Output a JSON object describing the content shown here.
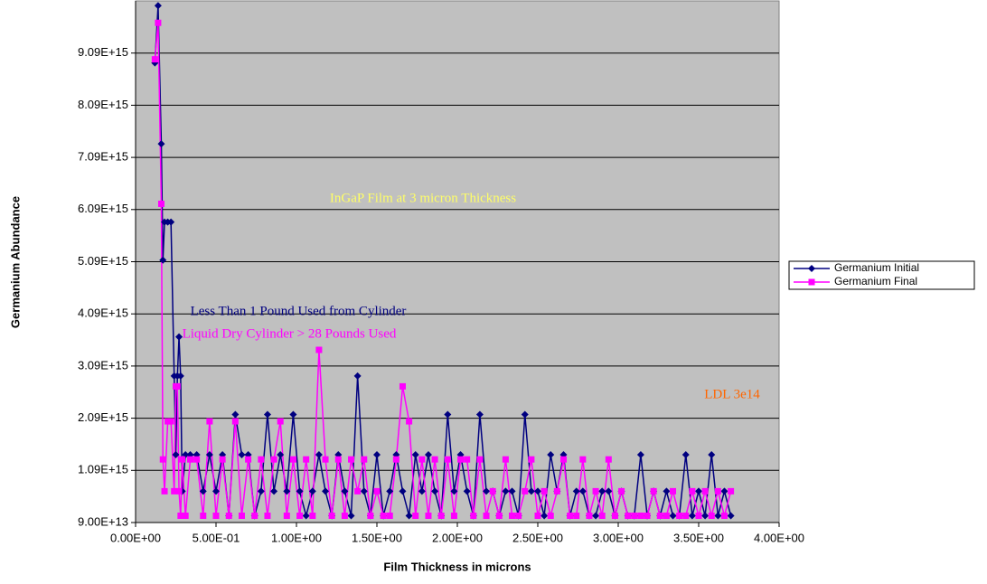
{
  "chart_data": {
    "type": "line",
    "x_label": "Film Thickness in microns",
    "y_label": "Germanium Abundance",
    "annotations": [
      "InGaP Film at 3 micron Thickness",
      "Less Than 1 Pound Used from Cylinder",
      "Liquid Dry Cylinder > 28 Pounds Used",
      "LDL 3e14"
    ],
    "annotation_colors": [
      "#ffff66",
      "#000080",
      "#ff00ff",
      "#ff6600"
    ],
    "plot_background": "#c0c0c0",
    "grid": true,
    "legend": "right",
    "xlim": [
      0,
      4
    ],
    "xticks": [
      {
        "value": 0,
        "label": "0.00E+00"
      },
      {
        "value": 0.5,
        "label": "5.00E-01"
      },
      {
        "value": 1,
        "label": "1.00E+00"
      },
      {
        "value": 1.5,
        "label": "1.50E+00"
      },
      {
        "value": 2,
        "label": "2.00E+00"
      },
      {
        "value": 2.5,
        "label": "2.50E+00"
      },
      {
        "value": 3,
        "label": "3.00E+00"
      },
      {
        "value": 3.5,
        "label": "3.50E+00"
      },
      {
        "value": 4,
        "label": "4.00E+00"
      }
    ],
    "ylim": [
      90000000000000.0,
      1.009e+16
    ],
    "yticks": [
      {
        "value": 90000000000000.0,
        "label": "9.00E+13"
      },
      {
        "value": 1090000000000000.0,
        "label": "1.09E+15"
      },
      {
        "value": 2090000000000000.0,
        "label": "2.09E+15"
      },
      {
        "value": 3090000000000000.0,
        "label": "3.09E+15"
      },
      {
        "value": 4090000000000000.0,
        "label": "4.09E+15"
      },
      {
        "value": 5090000000000000.0,
        "label": "5.09E+15"
      },
      {
        "value": 6090000000000000.0,
        "label": "6.09E+15"
      },
      {
        "value": 7090000000000000.0,
        "label": "7.09E+15"
      },
      {
        "value": 8090000000000000.0,
        "label": "8.09E+15"
      },
      {
        "value": 9090000000000000.0,
        "label": "9.09E+15"
      }
    ],
    "x": [
      0.12,
      0.14,
      0.16,
      0.17,
      0.18,
      0.2,
      0.22,
      0.24,
      0.25,
      0.26,
      0.27,
      0.28,
      0.29,
      0.31,
      0.34,
      0.38,
      0.42,
      0.46,
      0.5,
      0.54,
      0.58,
      0.62,
      0.66,
      0.7,
      0.74,
      0.78,
      0.82,
      0.86,
      0.9,
      0.94,
      0.98,
      1.02,
      1.06,
      1.1,
      1.14,
      1.18,
      1.22,
      1.26,
      1.3,
      1.34,
      1.38,
      1.42,
      1.46,
      1.5,
      1.54,
      1.58,
      1.62,
      1.66,
      1.7,
      1.74,
      1.78,
      1.82,
      1.86,
      1.9,
      1.94,
      1.98,
      2.02,
      2.06,
      2.1,
      2.14,
      2.18,
      2.22,
      2.26,
      2.3,
      2.34,
      2.38,
      2.42,
      2.46,
      2.5,
      2.54,
      2.58,
      2.62,
      2.66,
      2.7,
      2.74,
      2.78,
      2.82,
      2.86,
      2.9,
      2.94,
      2.98,
      3.02,
      3.06,
      3.1,
      3.14,
      3.18,
      3.22,
      3.26,
      3.3,
      3.34,
      3.38,
      3.42,
      3.46,
      3.5,
      3.54,
      3.58,
      3.62,
      3.66,
      3.7
    ],
    "series": [
      {
        "name": "Germanium Initial",
        "color": "#000080",
        "marker": "diamond",
        "values": [
          8900000000000000.0,
          1e+16,
          7350000000000000.0,
          5120000000000000.0,
          5850000000000000.0,
          5850000000000000.0,
          5850000000000000.0,
          2900000000000000.0,
          1390000000000000.0,
          2900000000000000.0,
          3650000000000000.0,
          2900000000000000.0,
          690000000000000.0,
          1390000000000000.0,
          1390000000000000.0,
          1390000000000000.0,
          690000000000000.0,
          1390000000000000.0,
          690000000000000.0,
          1390000000000000.0,
          220000000000000.0,
          2160000000000000.0,
          1390000000000000.0,
          1390000000000000.0,
          220000000000000.0,
          690000000000000.0,
          2160000000000000.0,
          690000000000000.0,
          1390000000000000.0,
          690000000000000.0,
          2160000000000000.0,
          690000000000000.0,
          220000000000000.0,
          690000000000000.0,
          1390000000000000.0,
          690000000000000.0,
          220000000000000.0,
          1390000000000000.0,
          690000000000000.0,
          220000000000000.0,
          2900000000000000.0,
          690000000000000.0,
          220000000000000.0,
          1390000000000000.0,
          220000000000000.0,
          690000000000000.0,
          1390000000000000.0,
          690000000000000.0,
          220000000000000.0,
          1390000000000000.0,
          690000000000000.0,
          1390000000000000.0,
          690000000000000.0,
          220000000000000.0,
          2160000000000000.0,
          690000000000000.0,
          1390000000000000.0,
          690000000000000.0,
          220000000000000.0,
          2160000000000000.0,
          690000000000000.0,
          690000000000000.0,
          220000000000000.0,
          690000000000000.0,
          690000000000000.0,
          220000000000000.0,
          2160000000000000.0,
          690000000000000.0,
          690000000000000.0,
          220000000000000.0,
          1390000000000000.0,
          690000000000000.0,
          1390000000000000.0,
          220000000000000.0,
          690000000000000.0,
          690000000000000.0,
          220000000000000.0,
          220000000000000.0,
          690000000000000.0,
          690000000000000.0,
          220000000000000.0,
          690000000000000.0,
          220000000000000.0,
          220000000000000.0,
          1390000000000000.0,
          220000000000000.0,
          690000000000000.0,
          220000000000000.0,
          690000000000000.0,
          220000000000000.0,
          220000000000000.0,
          1390000000000000.0,
          220000000000000.0,
          690000000000000.0,
          220000000000000.0,
          1390000000000000.0,
          220000000000000.0,
          690000000000000.0,
          220000000000000.0
        ]
      },
      {
        "name": "Germanium Final",
        "color": "#ff00ff",
        "marker": "square",
        "values": [
          8970000000000000.0,
          9670000000000000.0,
          6200000000000000.0,
          1300000000000000.0,
          690000000000000.0,
          2030000000000000.0,
          2030000000000000.0,
          690000000000000.0,
          2700000000000000.0,
          2700000000000000.0,
          690000000000000.0,
          220000000000000.0,
          1300000000000000.0,
          220000000000000.0,
          1300000000000000.0,
          1300000000000000.0,
          220000000000000.0,
          2030000000000000.0,
          220000000000000.0,
          1300000000000000.0,
          220000000000000.0,
          2030000000000000.0,
          220000000000000.0,
          1300000000000000.0,
          220000000000000.0,
          1300000000000000.0,
          220000000000000.0,
          1300000000000000.0,
          2030000000000000.0,
          220000000000000.0,
          1300000000000000.0,
          220000000000000.0,
          1300000000000000.0,
          220000000000000.0,
          3400000000000000.0,
          1300000000000000.0,
          220000000000000.0,
          1300000000000000.0,
          220000000000000.0,
          1300000000000000.0,
          690000000000000.0,
          1300000000000000.0,
          220000000000000.0,
          690000000000000.0,
          220000000000000.0,
          220000000000000.0,
          1300000000000000.0,
          2700000000000000.0,
          2030000000000000.0,
          220000000000000.0,
          1300000000000000.0,
          220000000000000.0,
          1300000000000000.0,
          220000000000000.0,
          1300000000000000.0,
          220000000000000.0,
          1300000000000000.0,
          1300000000000000.0,
          220000000000000.0,
          1300000000000000.0,
          220000000000000.0,
          690000000000000.0,
          220000000000000.0,
          1300000000000000.0,
          220000000000000.0,
          220000000000000.0,
          690000000000000.0,
          1300000000000000.0,
          220000000000000.0,
          690000000000000.0,
          220000000000000.0,
          690000000000000.0,
          1300000000000000.0,
          220000000000000.0,
          220000000000000.0,
          1300000000000000.0,
          220000000000000.0,
          690000000000000.0,
          220000000000000.0,
          1300000000000000.0,
          220000000000000.0,
          690000000000000.0,
          220000000000000.0,
          220000000000000.0,
          220000000000000.0,
          220000000000000.0,
          690000000000000.0,
          220000000000000.0,
          220000000000000.0,
          690000000000000.0,
          220000000000000.0,
          220000000000000.0,
          690000000000000.0,
          220000000000000.0,
          690000000000000.0,
          220000000000000.0,
          690000000000000.0,
          220000000000000.0,
          690000000000000.0
        ]
      }
    ]
  }
}
